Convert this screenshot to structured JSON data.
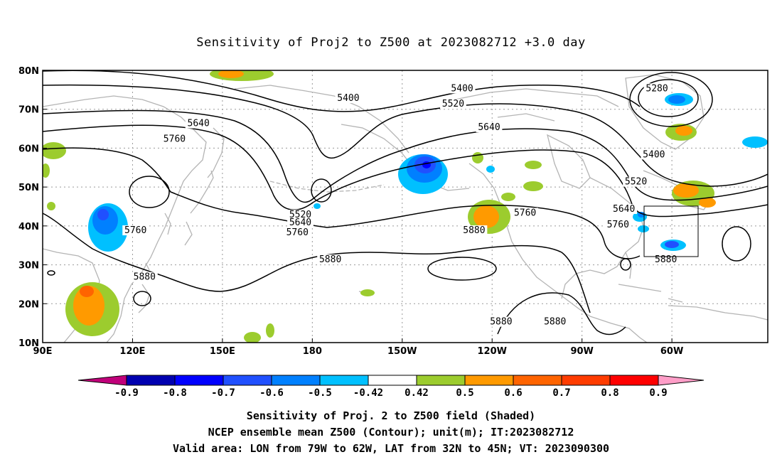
{
  "title": "Sensitivity of Proj2 to Z500 at 2023082712 +3.0 day",
  "map": {
    "lon_labels": [
      "90E",
      "120E",
      "150E",
      "180",
      "150W",
      "120W",
      "90W",
      "60W"
    ],
    "lat_labels": [
      "80N",
      "70N",
      "60N",
      "50N",
      "40N",
      "30N",
      "20N",
      "10N"
    ],
    "contour_labels": [
      {
        "text": "5400",
        "lon": -168,
        "lat": 72.5
      },
      {
        "text": "5400",
        "lon": -130,
        "lat": 75
      },
      {
        "text": "5520",
        "lon": -133,
        "lat": 71
      },
      {
        "text": "5640",
        "lon": 142,
        "lat": 66
      },
      {
        "text": "5640",
        "lon": -121,
        "lat": 65
      },
      {
        "text": "5760",
        "lon": 134,
        "lat": 62
      },
      {
        "text": "5280",
        "lon": -65,
        "lat": 75
      },
      {
        "text": "5400",
        "lon": -66,
        "lat": 58
      },
      {
        "text": "5520",
        "lon": -72,
        "lat": 51
      },
      {
        "text": "5640",
        "lon": -76,
        "lat": 44
      },
      {
        "text": "5760",
        "lon": -78,
        "lat": 40
      },
      {
        "text": "5880",
        "lon": -62,
        "lat": 31
      },
      {
        "text": "5520",
        "lon": 176,
        "lat": 42.5
      },
      {
        "text": "5640",
        "lon": 176,
        "lat": 40.5
      },
      {
        "text": "5760",
        "lon": 175,
        "lat": 38
      },
      {
        "text": "5760",
        "lon": 121,
        "lat": 38.5
      },
      {
        "text": "5880",
        "lon": 186,
        "lat": 31
      },
      {
        "text": "5880",
        "lon": 124,
        "lat": 26.5
      },
      {
        "text": "5760",
        "lon": -109,
        "lat": 43
      },
      {
        "text": "5880",
        "lon": -126,
        "lat": 38.5
      },
      {
        "text": "5880",
        "lon": -117,
        "lat": 15
      },
      {
        "text": "5880",
        "lon": -99,
        "lat": 15
      }
    ]
  },
  "colorbar": {
    "labels": [
      "-0.9",
      "-0.8",
      "-0.7",
      "-0.6",
      "-0.5",
      "-0.42",
      "0.42",
      "0.5",
      "0.6",
      "0.7",
      "0.8",
      "0.9"
    ],
    "colors": [
      "#c0007a",
      "#0000b0",
      "#0000ff",
      "#2050ff",
      "#0080ff",
      "#00c0ff",
      "#ffffff",
      "#9ccc2e",
      "#ff9a00",
      "#ff6400",
      "#ff3c00",
      "#ff0000",
      "#ff9ec8"
    ]
  },
  "captions": {
    "line1": "Sensitivity of Proj. 2 to Z500 field (Shaded)",
    "line2": "NCEP ensemble mean Z500 (Contour); unit(m); IT:2023082712",
    "line3": "Valid area: LON from 79W to 62W, LAT from 32N to 45N; VT: 2023090300"
  }
}
